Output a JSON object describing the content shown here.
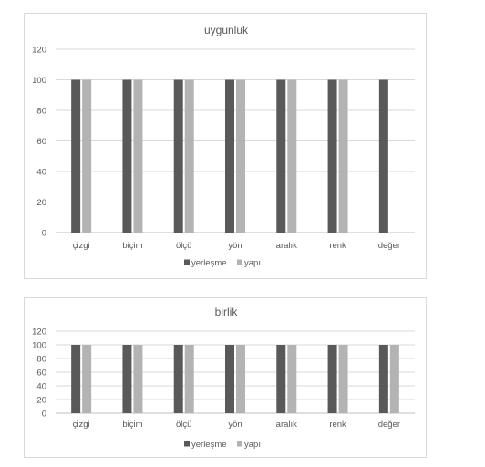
{
  "chart_data": [
    {
      "type": "bar",
      "title": "uygunluk",
      "categories": [
        "çizgi",
        "biçim",
        "ölçü",
        "yön",
        "aralık",
        "renk",
        "değer"
      ],
      "series": [
        {
          "name": "yerleşme",
          "color": "#595959",
          "values": [
            100,
            100,
            100,
            100,
            100,
            100,
            100
          ]
        },
        {
          "name": "yapı",
          "color": "#b3b3b3",
          "values": [
            100,
            100,
            100,
            100,
            100,
            100,
            0
          ]
        }
      ],
      "ylim": [
        0,
        120
      ],
      "yticks": [
        0,
        20,
        40,
        60,
        80,
        100,
        120
      ],
      "grid": true,
      "legend": "bottom"
    },
    {
      "type": "bar",
      "title": "birlik",
      "categories": [
        "çizgi",
        "biçim",
        "ölçü",
        "yön",
        "aralık",
        "renk",
        "değer"
      ],
      "series": [
        {
          "name": "yerleşme",
          "color": "#595959",
          "values": [
            100,
            100,
            100,
            100,
            100,
            100,
            100
          ]
        },
        {
          "name": "yapı",
          "color": "#b3b3b3",
          "values": [
            100,
            100,
            100,
            100,
            100,
            100,
            100
          ]
        }
      ],
      "ylim": [
        0,
        120
      ],
      "yticks": [
        0,
        20,
        40,
        60,
        80,
        100,
        120
      ],
      "grid": true,
      "legend": "bottom"
    }
  ]
}
